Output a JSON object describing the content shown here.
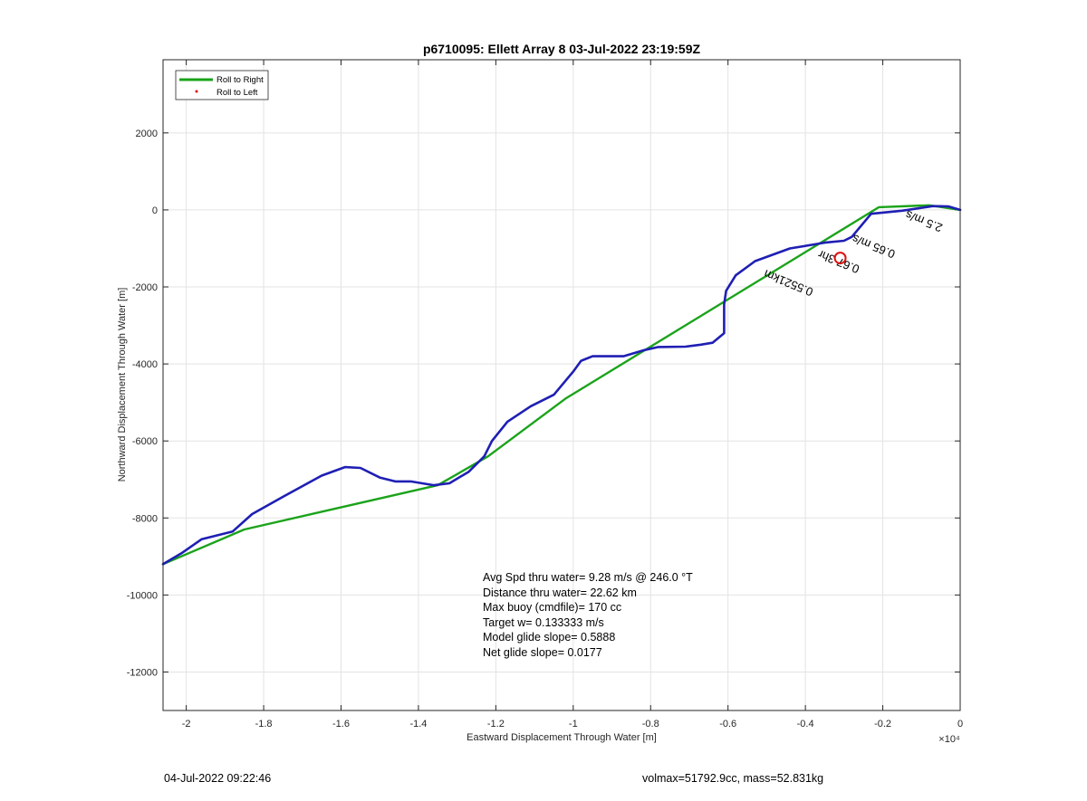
{
  "chart_data": {
    "type": "line",
    "title": "p6710095: Ellett Array 8 03-Jul-2022 23:19:59Z",
    "xlabel": "Eastward Displacement Through Water [m]",
    "ylabel": "Northward Displacement Through Water [m]",
    "x_exponent_label": "×10⁴",
    "xlim": [
      -20600,
      0
    ],
    "ylim": [
      -13000,
      3900
    ],
    "x_ticks": [
      -20000,
      -18000,
      -16000,
      -14000,
      -12000,
      -10000,
      -8000,
      -6000,
      -4000,
      -2000,
      0
    ],
    "x_tick_labels": [
      "-2",
      "-1.8",
      "-1.6",
      "-1.4",
      "-1.2",
      "-1",
      "-0.8",
      "-0.6",
      "-0.4",
      "-0.2",
      "0"
    ],
    "y_ticks": [
      2000,
      0,
      -2000,
      -4000,
      -6000,
      -8000,
      -10000,
      -12000
    ],
    "y_tick_labels": [
      "2000",
      "0",
      "-2000",
      "-4000",
      "-6000",
      "-8000",
      "-10000",
      "-12000"
    ],
    "grid": true,
    "legend": {
      "position": "top-left",
      "entries": [
        {
          "label": "Roll to Right",
          "color": "#1aa31a",
          "marker": "line"
        },
        {
          "label": "Roll to Left",
          "color": "#e01010",
          "marker": "dot"
        }
      ]
    },
    "series": [
      {
        "color": "#1aa31a",
        "x": [
          -20600,
          -18500,
          -13500,
          -12200,
          -10200,
          -2100,
          -800,
          0
        ],
        "y": [
          -9200,
          -8300,
          -7150,
          -6400,
          -4900,
          70,
          120,
          0
        ]
      },
      {
        "color": "#1f1fb4",
        "x": [
          -20600,
          -20100,
          -19600,
          -18800,
          -18300,
          -17500,
          -16500,
          -15900,
          -15500,
          -15000,
          -14600,
          -14200,
          -13600,
          -13200,
          -12700,
          -12300,
          -12100,
          -11700,
          -11100,
          -10500,
          -10000,
          -9800,
          -9700,
          -9500,
          -8700,
          -8200,
          -7800,
          -7100,
          -6700,
          -6400,
          -6100,
          -6100,
          -6050,
          -5800,
          -5300,
          -4400,
          -3500,
          -3000,
          -2800,
          -2300,
          -1500,
          -700,
          -300,
          0
        ],
        "y": [
          -9200,
          -8900,
          -8550,
          -8350,
          -7900,
          -7450,
          -6900,
          -6680,
          -6700,
          -6950,
          -7050,
          -7050,
          -7150,
          -7100,
          -6800,
          -6400,
          -6000,
          -5500,
          -5100,
          -4800,
          -4200,
          -3920,
          -3880,
          -3800,
          -3800,
          -3650,
          -3560,
          -3550,
          -3500,
          -3450,
          -3200,
          -2450,
          -2100,
          -1700,
          -1330,
          -1000,
          -850,
          -800,
          -700,
          -100,
          -20,
          100,
          90,
          0
        ]
      }
    ],
    "annotations": [
      {
        "text": "0.5521km",
        "x": -4400,
        "y": -1800,
        "rotate": 202
      },
      {
        "text": "0.67 3hr",
        "x": -3100,
        "y": -1250,
        "rotate": 202
      },
      {
        "text": "0.65 m/s",
        "x": -2200,
        "y": -850,
        "rotate": 202
      },
      {
        "text": "2.5 m/s",
        "x": -900,
        "y": -200,
        "rotate": 202
      }
    ],
    "stats_lines": [
      "Avg Spd thru water=  9.28 m/s @ 246.0 °T",
      "Distance thru water= 22.62 km",
      "Max buoy (cmdfile)= 170 cc",
      "Target w= 0.133333 m/s",
      "Model glide slope= 0.5888",
      "Net glide slope= 0.0177"
    ]
  },
  "footer": {
    "left": "04-Jul-2022 09:22:46",
    "right": "volmax=51792.9cc, mass=52.831kg"
  }
}
